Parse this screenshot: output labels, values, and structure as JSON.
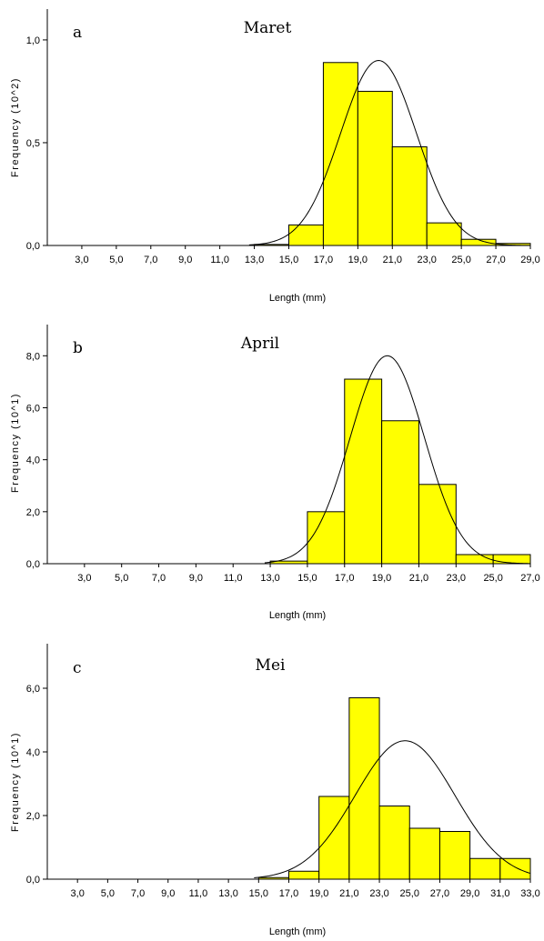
{
  "chart_data": [
    {
      "type": "bar",
      "panel": "a",
      "title": "Maret",
      "xlabel": "Length (mm)",
      "ylabel": "Frequency (10^2)",
      "yticks": [
        "0,0",
        "0,5",
        "1,0"
      ],
      "ylim": [
        0,
        1.15
      ],
      "xticks": [
        "3,0",
        "5,0",
        "7,0",
        "9,0",
        "11,0",
        "13,0",
        "15,0",
        "17,0",
        "19,0",
        "21,0",
        "23,0",
        "25,0",
        "27,0",
        "29,0"
      ],
      "xlim": [
        1,
        29
      ],
      "bins": [
        {
          "from": 13,
          "to": 15,
          "value": 0.005
        },
        {
          "from": 15,
          "to": 17,
          "value": 0.1
        },
        {
          "from": 17,
          "to": 19,
          "value": 0.89
        },
        {
          "from": 19,
          "to": 21,
          "value": 0.75
        },
        {
          "from": 21,
          "to": 23,
          "value": 0.48
        },
        {
          "from": 23,
          "to": 25,
          "value": 0.11
        },
        {
          "from": 25,
          "to": 27,
          "value": 0.03
        },
        {
          "from": 27,
          "to": 29,
          "value": 0.01
        }
      ],
      "normal_curve": {
        "mean": 20.2,
        "sd": 2.2,
        "peak": 0.9
      },
      "bar_color": "#ffff00"
    },
    {
      "type": "bar",
      "panel": "b",
      "title": "April",
      "xlabel": "Length (mm)",
      "ylabel": "Frequency (10^1)",
      "yticks": [
        "0,0",
        "2,0",
        "4,0",
        "6,0",
        "8,0"
      ],
      "ylim": [
        0,
        9.2
      ],
      "xticks": [
        "3,0",
        "5,0",
        "7,0",
        "9,0",
        "11,0",
        "13,0",
        "15,0",
        "17,0",
        "19,0",
        "21,0",
        "23,0",
        "25,0",
        "27,0"
      ],
      "xlim": [
        1,
        27
      ],
      "bins": [
        {
          "from": 13,
          "to": 15,
          "value": 0.1
        },
        {
          "from": 15,
          "to": 17,
          "value": 2.0
        },
        {
          "from": 17,
          "to": 19,
          "value": 7.1
        },
        {
          "from": 19,
          "to": 21,
          "value": 5.5
        },
        {
          "from": 21,
          "to": 23,
          "value": 3.05
        },
        {
          "from": 23,
          "to": 25,
          "value": 0.35
        },
        {
          "from": 25,
          "to": 27,
          "value": 0.35
        }
      ],
      "normal_curve": {
        "mean": 19.3,
        "sd": 2.0,
        "peak": 8.0
      },
      "bar_color": "#ffff00"
    },
    {
      "type": "bar",
      "panel": "c",
      "title": "Mei",
      "xlabel": "Length (mm)",
      "ylabel": "Frequency (10^1)",
      "yticks": [
        "0,0",
        "2,0",
        "4,0",
        "6,0"
      ],
      "ylim": [
        0,
        7.4
      ],
      "xticks": [
        "3,0",
        "5,0",
        "7,0",
        "9,0",
        "11,0",
        "13,0",
        "15,0",
        "17,0",
        "19,0",
        "21,0",
        "23,0",
        "25,0",
        "27,0",
        "29,0",
        "31,0",
        "33,0"
      ],
      "xlim": [
        1,
        33
      ],
      "bins": [
        {
          "from": 15,
          "to": 17,
          "value": 0.05
        },
        {
          "from": 17,
          "to": 19,
          "value": 0.25
        },
        {
          "from": 19,
          "to": 21,
          "value": 2.6
        },
        {
          "from": 21,
          "to": 23,
          "value": 5.7
        },
        {
          "from": 23,
          "to": 25,
          "value": 2.3
        },
        {
          "from": 25,
          "to": 27,
          "value": 1.6
        },
        {
          "from": 27,
          "to": 29,
          "value": 1.5
        },
        {
          "from": 29,
          "to": 31,
          "value": 0.65
        },
        {
          "from": 31,
          "to": 33,
          "value": 0.65
        }
      ],
      "normal_curve": {
        "mean": 24.7,
        "sd": 3.3,
        "peak": 4.35
      },
      "bar_color": "#ffff00"
    }
  ]
}
